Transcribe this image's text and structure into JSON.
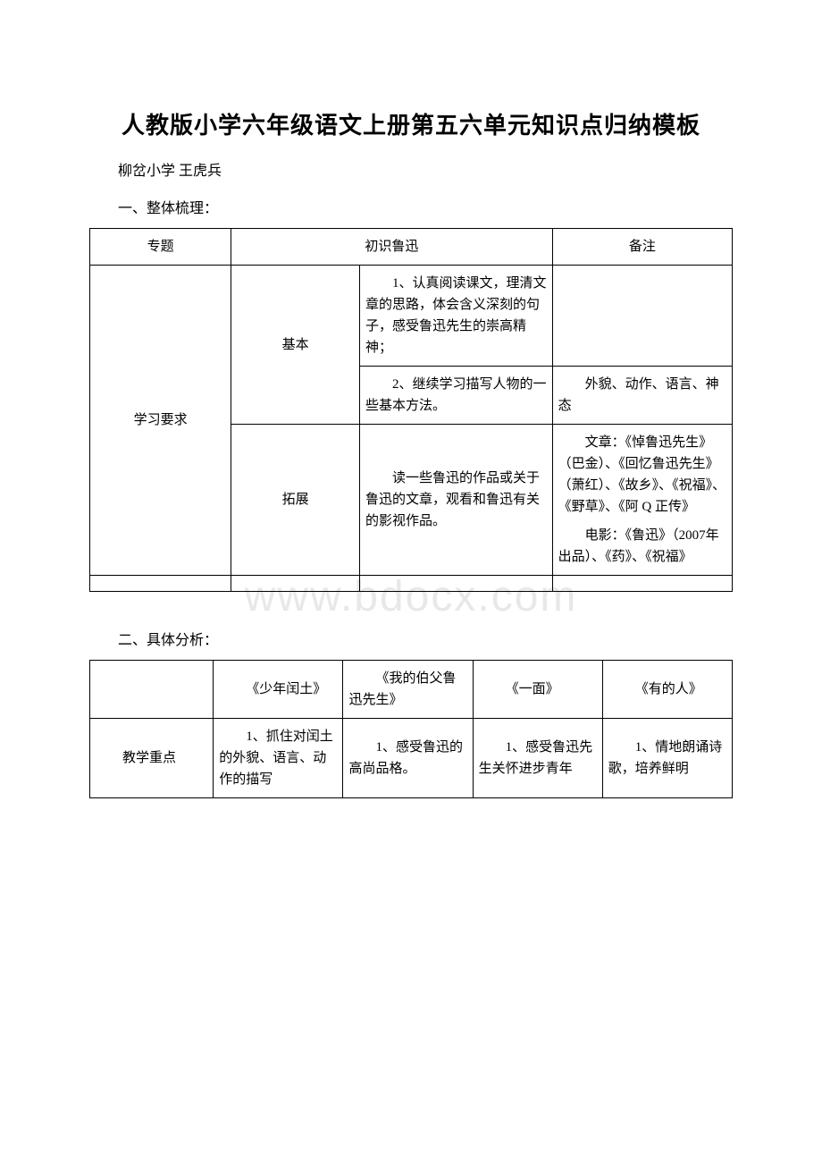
{
  "title": "人教版小学六年级语文上册第五六单元知识点归纳模板",
  "subtitle": "柳岔小学 王虎兵",
  "section1_heading": "一、整体梳理：",
  "section2_heading": "二、具体分析：",
  "watermark": "www.bdocx.com",
  "table1": {
    "header": {
      "col1": "专题",
      "col2": "初识鲁迅",
      "col4": "备注"
    },
    "row_label": "学习要求",
    "basic_label": "基本",
    "basic_item1": "1、认真阅读课文，理清文章的思路，体会含义深刻的句子，感受鲁迅先生的崇高精神；",
    "basic_item2": "2、继续学习描写人物的一些基本方法。",
    "basic_item2_note": "外貌、动作、语言、神态",
    "expand_label": "拓展",
    "expand_content": "读一些鲁迅的作品或关于鲁迅的文章，观看和鲁迅有关的影视作品。",
    "expand_note_p1": "文章：《悼鲁迅先生》（巴金）、《回忆鲁迅先生》（萧红）、《故乡》、《祝福》、《野草》、《阿 Q 正传》",
    "expand_note_p2": "电影：《鲁迅》（2007年出品）、《药》、《祝福》"
  },
  "table2": {
    "header": {
      "c1": "",
      "c2": "《少年闰土》",
      "c3": "《我的伯父鲁迅先生》",
      "c4": "《一面》",
      "c5": "《有的人》"
    },
    "row1_label": "教学重点",
    "row1_c2": "1、抓住对闰土的外貌、语言、动作的描写",
    "row1_c3": "1、感受鲁迅的高尚品格。",
    "row1_c4": "1、感受鲁迅先生关怀进步青年",
    "row1_c5": "1、情地朗诵诗歌，培养鲜明"
  }
}
